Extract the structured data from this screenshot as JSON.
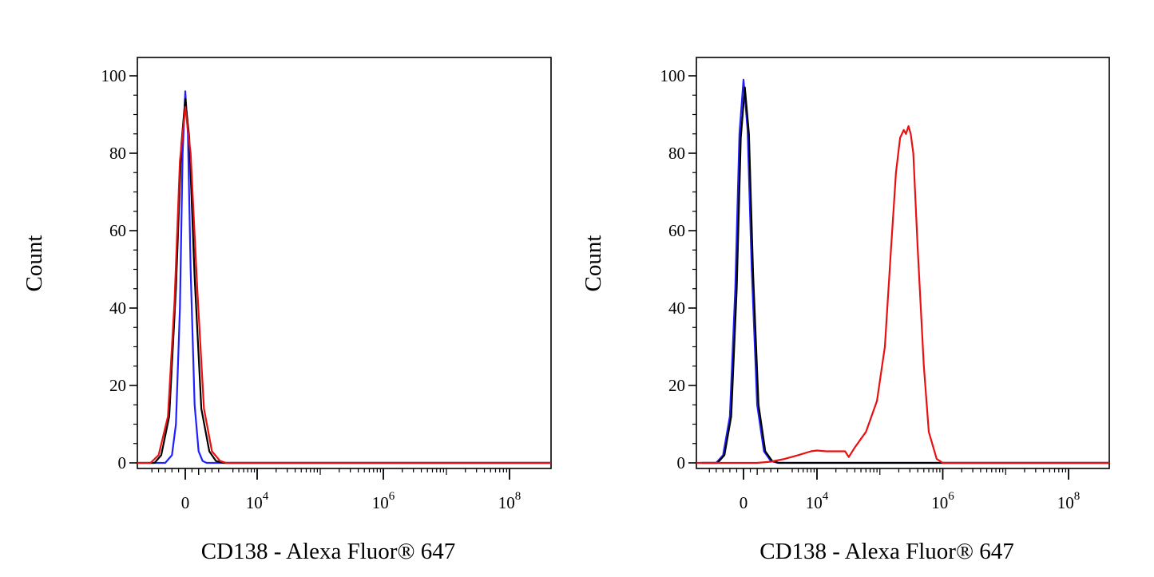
{
  "chart_data": [
    {
      "type": "line",
      "xlabel": "CD138 - Alexa Fluor® 647",
      "ylabel": "Count",
      "xscale": "biexponential",
      "xlim": [
        -3000,
        200000000
      ],
      "ylim": [
        0,
        104
      ],
      "yticks": [
        "0",
        "20",
        "40",
        "60",
        "80",
        "100"
      ],
      "xticks": [
        {
          "label": "0",
          "sup": ""
        },
        {
          "label": "10",
          "sup": "4"
        },
        {
          "label": "10",
          "sup": "6"
        },
        {
          "label": "10",
          "sup": "8"
        }
      ],
      "grid": false,
      "series": [
        {
          "color": "#1f1fff",
          "x": [
            -1500,
            -1000,
            -700,
            -400,
            -200,
            0,
            200,
            400,
            700,
            1000,
            1300,
            1600
          ],
          "y": [
            0,
            2,
            10,
            40,
            80,
            96,
            85,
            50,
            15,
            3,
            0.5,
            0
          ]
        },
        {
          "color": "#000000",
          "x": [
            -2300,
            -1800,
            -1200,
            -700,
            -300,
            0,
            300,
            700,
            1200,
            1800,
            2300,
            2800
          ],
          "y": [
            0,
            2,
            12,
            45,
            82,
            94,
            84,
            48,
            14,
            3,
            0.5,
            0
          ]
        },
        {
          "color": "#e81010",
          "x": [
            -2600,
            -2000,
            -1300,
            -800,
            -400,
            0,
            400,
            900,
            1400,
            2000,
            2600,
            3100
          ],
          "y": [
            0,
            2,
            12,
            42,
            78,
            92,
            80,
            45,
            14,
            3,
            0.5,
            0
          ]
        }
      ]
    },
    {
      "type": "line",
      "xlabel": "CD138 - Alexa Fluor® 647",
      "ylabel": "Count",
      "xscale": "biexponential",
      "xlim": [
        -3000,
        200000000
      ],
      "ylim": [
        0,
        104
      ],
      "yticks": [
        "0",
        "20",
        "40",
        "60",
        "80",
        "100"
      ],
      "xticks": [
        {
          "label": "0",
          "sup": ""
        },
        {
          "label": "10",
          "sup": "4"
        },
        {
          "label": "10",
          "sup": "6"
        },
        {
          "label": "10",
          "sup": "8"
        }
      ],
      "grid": false,
      "series": [
        {
          "color": "#1f1fff",
          "x": [
            -2000,
            -1500,
            -1000,
            -600,
            -300,
            0,
            300,
            600,
            1000,
            1500,
            2000,
            2500
          ],
          "y": [
            0,
            2,
            12,
            45,
            85,
            99,
            86,
            50,
            15,
            3,
            0.5,
            0
          ]
        },
        {
          "color": "#000000",
          "x": [
            -1900,
            -1400,
            -900,
            -500,
            -200,
            100,
            400,
            700,
            1100,
            1600,
            2100,
            2600
          ],
          "y": [
            0,
            2,
            12,
            45,
            84,
            97,
            85,
            49,
            15,
            3,
            0.5,
            0
          ]
        },
        {
          "color": "#e81010",
          "x": [
            -3000,
            1000,
            2000,
            3000,
            5000,
            8000,
            10000,
            14000,
            20000,
            28000,
            32000,
            40000,
            60000,
            90000,
            120000,
            150000,
            180000,
            210000,
            240000,
            260000,
            285000,
            310000,
            340000,
            400000,
            500000,
            600000,
            800000,
            1000000,
            200000000
          ],
          "y": [
            0,
            0,
            0.3,
            1,
            2,
            3,
            3.2,
            3,
            3,
            3,
            1.5,
            4,
            8,
            16,
            30,
            55,
            75,
            84,
            86,
            85,
            87,
            85,
            80,
            55,
            25,
            8,
            1,
            0,
            0
          ]
        }
      ]
    }
  ]
}
